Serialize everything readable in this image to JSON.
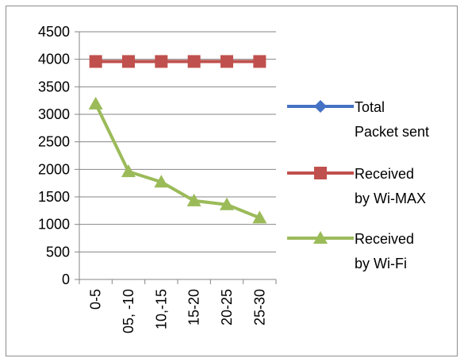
{
  "chart_data": {
    "type": "line",
    "title": "",
    "xlabel": "",
    "ylabel": "",
    "categories": [
      "0-5",
      "05, -10",
      "10,-15",
      "15-20",
      "20-25",
      "25-30"
    ],
    "ylim": [
      0,
      4500
    ],
    "yticks": [
      0,
      500,
      1000,
      1500,
      2000,
      2500,
      3000,
      3500,
      4000,
      4500
    ],
    "grid": "horizontal",
    "legend_position": "right",
    "series": [
      {
        "name_lines": [
          "Total",
          "Packet sent"
        ],
        "color": "#4472C4",
        "marker": "diamond",
        "values": [
          3960,
          3960,
          3960,
          3960,
          3960,
          3960
        ]
      },
      {
        "name_lines": [
          "Received",
          "by Wi-MAX"
        ],
        "color": "#C0504D",
        "marker": "square",
        "values": [
          3960,
          3960,
          3960,
          3960,
          3960,
          3960
        ]
      },
      {
        "name_lines": [
          "Received",
          "by Wi-Fi"
        ],
        "color": "#9BBB59",
        "marker": "triangle",
        "values": [
          3190,
          1960,
          1770,
          1430,
          1360,
          1120
        ]
      }
    ]
  }
}
